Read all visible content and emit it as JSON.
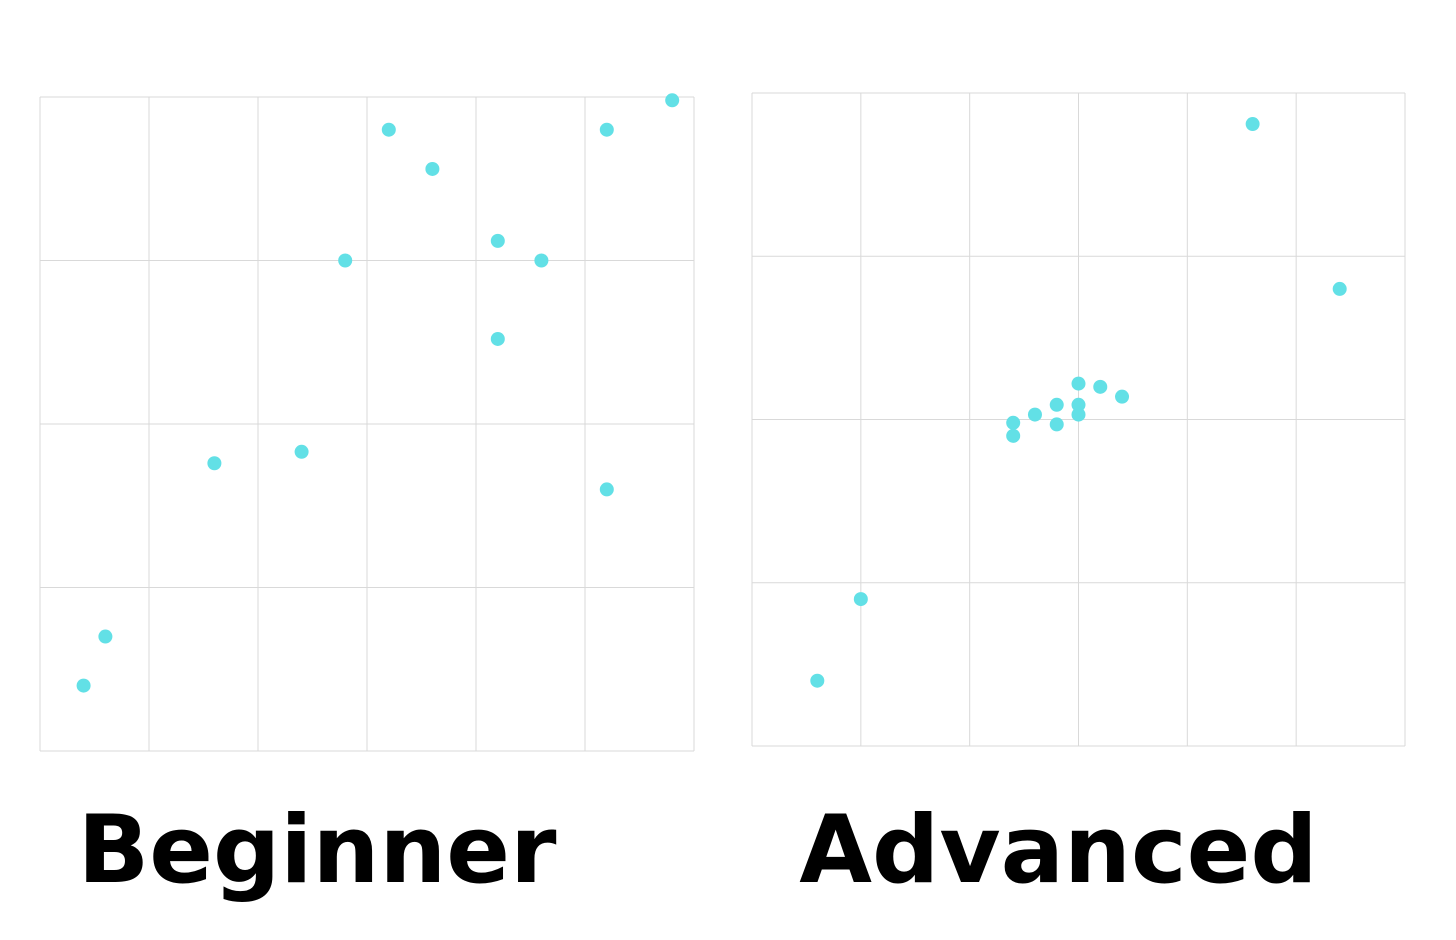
{
  "chart_data": [
    {
      "type": "scatter",
      "title": "Beginner",
      "color": "#62e0e6",
      "grid": true,
      "xlim": [
        0,
        6
      ],
      "ylim": [
        0,
        4
      ],
      "xticks": [
        0,
        1,
        2,
        3,
        4,
        5,
        6
      ],
      "yticks": [
        0,
        1,
        2,
        3,
        4
      ],
      "x": [
        0.4,
        0.6,
        1.6,
        2.4,
        2.8,
        3.2,
        3.6,
        4.2,
        4.6,
        4.2,
        5.2,
        5.2,
        5.8
      ],
      "values": [
        0.4,
        0.7,
        1.76,
        1.83,
        3.0,
        3.8,
        3.56,
        3.12,
        3.0,
        2.52,
        3.8,
        1.6,
        3.98
      ]
    },
    {
      "type": "scatter",
      "title": "Advanced",
      "color": "#62e0e6",
      "grid": true,
      "xlim": [
        0,
        6
      ],
      "ylim": [
        0,
        4
      ],
      "xticks": [
        0,
        1,
        2,
        3,
        4,
        5,
        6
      ],
      "yticks": [
        0,
        1,
        2,
        3,
        4
      ],
      "x": [
        0.6,
        1.0,
        2.4,
        2.4,
        2.6,
        2.8,
        2.8,
        3.0,
        3.0,
        3.0,
        3.2,
        3.4,
        4.6,
        5.4
      ],
      "values": [
        0.4,
        0.9,
        1.98,
        1.9,
        2.03,
        2.09,
        1.97,
        2.22,
        2.09,
        2.03,
        2.2,
        2.14,
        3.81,
        2.8
      ]
    }
  ]
}
